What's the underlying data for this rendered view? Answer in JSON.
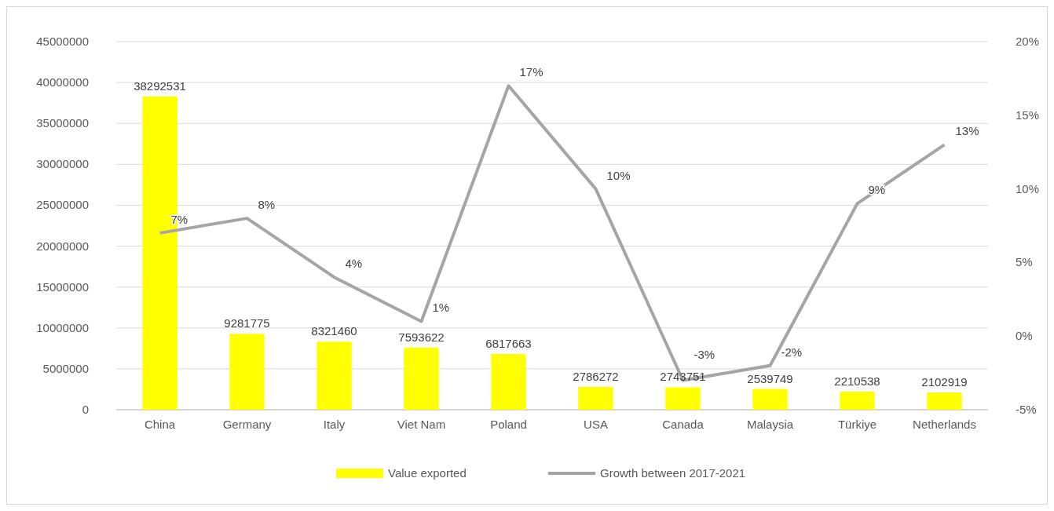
{
  "chart_data": {
    "type": "bar",
    "categories": [
      "China",
      "Germany",
      "Italy",
      "Viet Nam",
      "Poland",
      "USA",
      "Canada",
      "Malaysia",
      "Türkiye",
      "Netherlands"
    ],
    "series": [
      {
        "name": "Value exported",
        "color": "#ffff00",
        "values": [
          38292531,
          9281775,
          8321460,
          7593622,
          6817663,
          2786272,
          2743751,
          2539749,
          2210538,
          2102919
        ],
        "value_labels": [
          "38292531",
          "9281775",
          "8321460",
          "7593622",
          "6817663",
          "2786272",
          "2743751",
          "2539749",
          "2210538",
          "2102919"
        ]
      },
      {
        "name": "Growth between 2017-2021",
        "type": "line",
        "axis": "y2",
        "color": "#a5a5a5",
        "values": [
          7,
          8,
          4,
          1,
          17,
          10,
          -3,
          -2,
          9,
          13
        ],
        "value_labels": [
          "7%",
          "8%",
          "4%",
          "1%",
          "17%",
          "10%",
          "-3%",
          "-2%",
          "9%",
          "13%"
        ]
      }
    ],
    "ylim": [
      0,
      45000000
    ],
    "yticks": [
      0,
      5000000,
      10000000,
      15000000,
      20000000,
      25000000,
      30000000,
      35000000,
      40000000,
      45000000
    ],
    "y2lim": [
      -5,
      20
    ],
    "y2ticks": [
      {
        "value": -5,
        "label": "-5%"
      },
      {
        "value": 0,
        "label": "0%"
      },
      {
        "value": 5,
        "label": "5%"
      },
      {
        "value": 10,
        "label": "10%"
      },
      {
        "value": 15,
        "label": "15%"
      },
      {
        "value": 20,
        "label": "20%"
      }
    ],
    "grid": "y",
    "legend": "bottom",
    "marker": "none",
    "line_style": "solid"
  }
}
